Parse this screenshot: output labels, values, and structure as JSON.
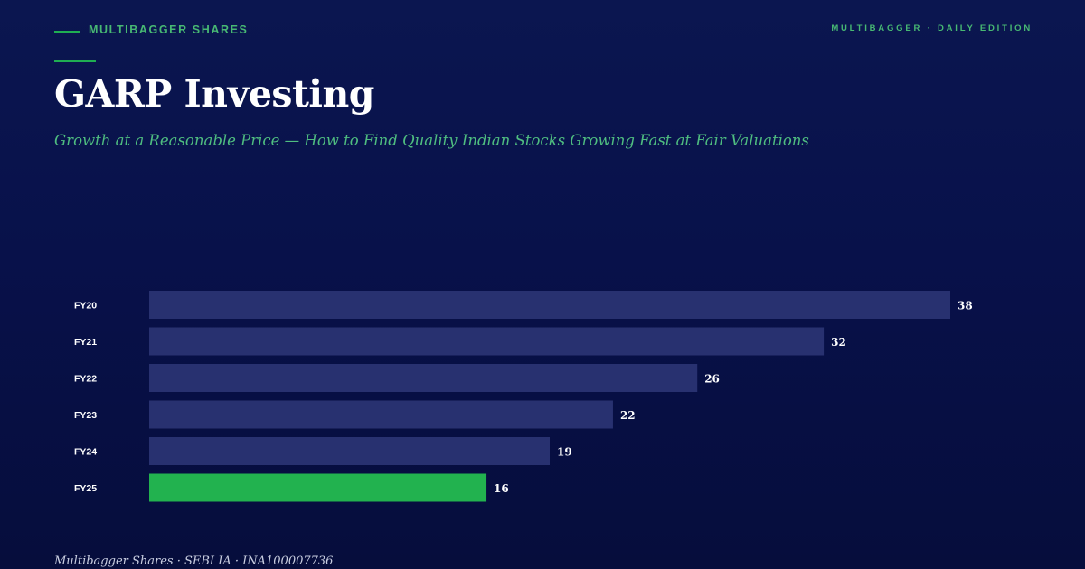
{
  "header": {
    "kicker": "MULTIBAGGER SHARES",
    "edition": "MULTIBAGGER · DAILY EDITION",
    "title": "GARP Investing",
    "subtitle": "Growth at a Reasonable Price — How to Find Quality Indian Stocks Growing Fast at Fair Valuations"
  },
  "footer": {
    "text": "Multibagger Shares · SEBI IA · INA100007736"
  },
  "colors": {
    "background": "#08114a",
    "accent": "#22b24f",
    "bar": "#283170",
    "highlight_bar": "#22b24f",
    "kicker": "#47b873"
  },
  "chart_data": {
    "type": "bar",
    "orientation": "horizontal",
    "categories": [
      "FY20",
      "FY21",
      "FY22",
      "FY23",
      "FY24",
      "FY25"
    ],
    "values": [
      38,
      32,
      26,
      22,
      19,
      16
    ],
    "highlight": "FY25",
    "title": "",
    "xlabel": "",
    "ylabel": "",
    "xlim": [
      0,
      38
    ],
    "grid": false,
    "legend": "none"
  }
}
